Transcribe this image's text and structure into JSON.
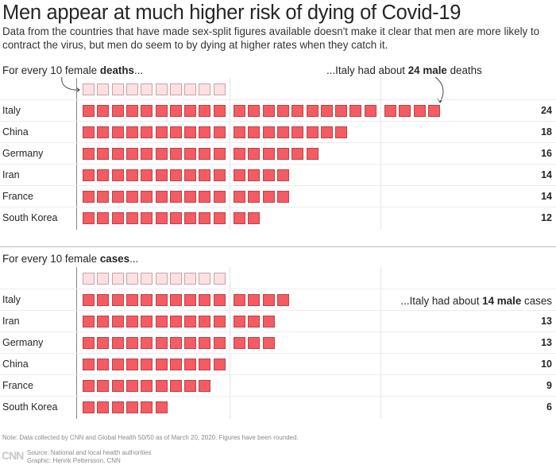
{
  "title": "Men appear at much higher risk of dying of Covid-19",
  "subtitle": "Data from the countries that have made sex-split figures available doesn't make it clear that men are more likely to contract the virus, but men do seem to by dying at higher rates when they catch it.",
  "colors": {
    "male": "#f45b62",
    "female_reference": "#fde0e1"
  },
  "chart_data": [
    {
      "type": "waffle",
      "intro": {
        "pre": "For every 10 female ",
        "bold": "deaths",
        "post": "..."
      },
      "annotation": {
        "pre": "...Italy had about ",
        "bold": "24 male",
        "post": " deaths"
      },
      "reference": 10,
      "categories": [
        "Italy",
        "China",
        "Germany",
        "Iran",
        "France",
        "South Korea"
      ],
      "values": [
        24,
        18,
        16,
        14,
        14,
        12
      ]
    },
    {
      "type": "waffle",
      "intro": {
        "pre": "For every 10 female ",
        "bold": "cases",
        "post": "..."
      },
      "annotation": {
        "pre": "...Italy had about ",
        "bold": "14 male",
        "post": " cases"
      },
      "reference": 10,
      "categories": [
        "Italy",
        "Iran",
        "Germany",
        "China",
        "France",
        "South Korea"
      ],
      "values": [
        14,
        13,
        13,
        10,
        9,
        6
      ]
    }
  ],
  "footer": {
    "note": "Note: Data collected by CNN and Global Health 50/50 as of March 20, 2020. Figures have been rounded.",
    "source": "Source: National and local health authorities",
    "graphic": "Graphic: Henrik Pettersson, CNN",
    "logo": "CNN"
  }
}
